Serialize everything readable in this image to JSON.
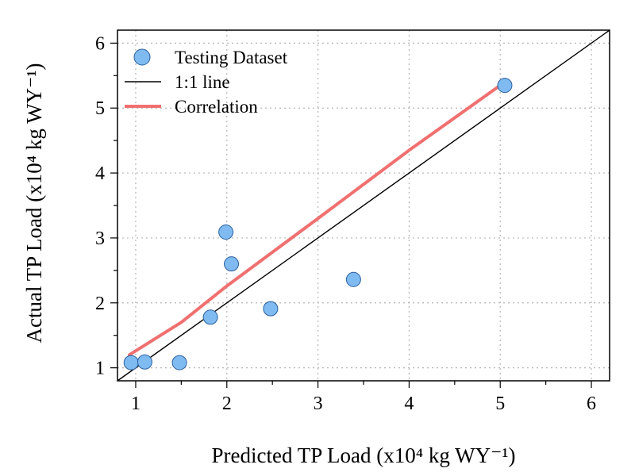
{
  "chart_data": {
    "type": "scatter",
    "xlabel": "Predicted TP Load (x10⁴ kg WY⁻¹)",
    "ylabel": "Actual TP Load (x10⁴ kg WY⁻¹)",
    "xlim": [
      0.8,
      6.2
    ],
    "ylim": [
      0.8,
      6.2
    ],
    "xticks": [
      1,
      2,
      3,
      4,
      5,
      6
    ],
    "yticks": [
      1,
      2,
      3,
      4,
      5,
      6
    ],
    "x_tick_labels": [
      "1",
      "2",
      "3",
      "4",
      "5",
      "6"
    ],
    "y_tick_labels": [
      "1",
      "2",
      "3",
      "4",
      "5",
      "6"
    ],
    "minor_tick_step": 0.5,
    "grid": true,
    "legend_position": "top-left",
    "series": [
      {
        "name": "Testing Dataset",
        "kind": "points",
        "color": "#7fbbf0",
        "edge_color": "#2a5f9e",
        "points": [
          {
            "x": 0.95,
            "y": 1.08
          },
          {
            "x": 1.1,
            "y": 1.09
          },
          {
            "x": 1.48,
            "y": 1.08
          },
          {
            "x": 1.82,
            "y": 1.78
          },
          {
            "x": 1.99,
            "y": 3.09
          },
          {
            "x": 2.05,
            "y": 2.6
          },
          {
            "x": 2.48,
            "y": 1.91
          },
          {
            "x": 3.39,
            "y": 2.36
          },
          {
            "x": 5.05,
            "y": 5.35
          }
        ]
      },
      {
        "name": "1:1 line",
        "kind": "line",
        "color": "#000000",
        "x": [
          0.8,
          6.2
        ],
        "y": [
          0.8,
          6.2
        ]
      },
      {
        "name": "Correlation",
        "kind": "line",
        "color": "#f07070",
        "x": [
          0.93,
          1.5,
          2.0,
          3.0,
          4.0,
          5.05
        ],
        "y": [
          1.2,
          1.7,
          2.26,
          3.3,
          4.35,
          5.4
        ]
      }
    ]
  }
}
